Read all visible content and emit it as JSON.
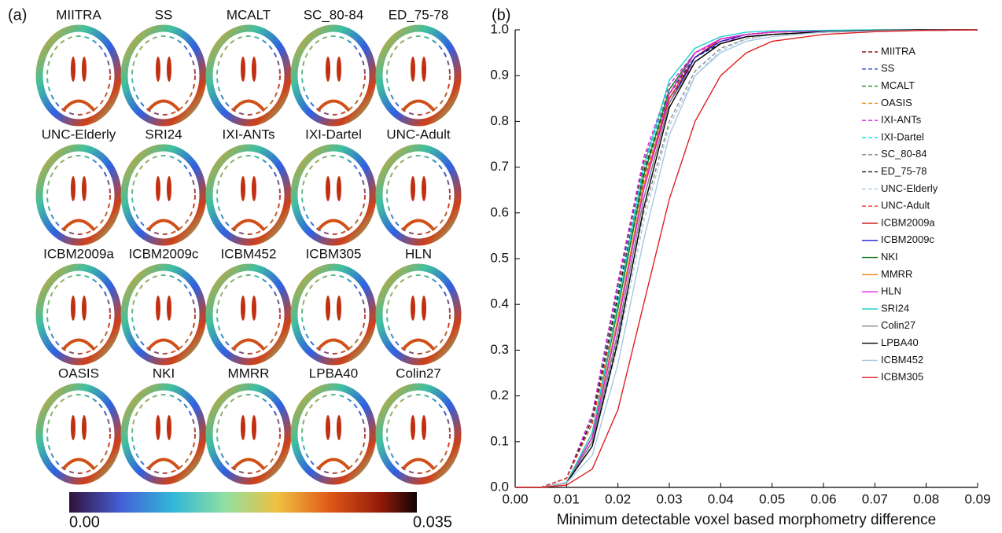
{
  "panel_a": {
    "label": "(a)",
    "images": [
      "MIITRA",
      "SS",
      "MCALT",
      "SC_80-84",
      "ED_75-78",
      "UNC-Elderly",
      "SRI24",
      "IXI-ANTs",
      "IXI-Dartel",
      "UNC-Adult",
      "ICBM2009a",
      "ICBM2009c",
      "ICBM452",
      "ICBM305",
      "HLN",
      "OASIS",
      "NKI",
      "MMRR",
      "LPBA40",
      "Colin27"
    ],
    "colorbar": {
      "ticks": [
        {
          "value": 0,
          "label": "0.00"
        },
        0.035
      ]
    }
  },
  "chart_data": {
    "type": "line",
    "panel_label": "(b)",
    "xlabel": "Minimum detectable voxel based morphometry difference",
    "x": [
      0,
      0.005,
      0.01,
      0.015,
      0.02,
      0.025,
      0.03,
      0.035,
      0.04,
      0.045,
      0.05,
      0.06,
      0.07,
      0.08,
      0.09
    ],
    "xlim": [
      0,
      0.09
    ],
    "xticks": [
      {
        "value": 0,
        "label": "0.00"
      },
      0.01,
      0.02,
      0.03,
      0.04,
      0.05,
      0.06,
      0.07,
      0.08,
      0.09
    ],
    "ylim": [
      0,
      1
    ],
    "yticks": [
      {
        "value": 0,
        "label": "0.0"
      },
      0.1,
      0.2,
      0.3,
      0.4,
      0.5,
      0.6,
      0.7,
      0.8,
      0.9,
      {
        "value": 1,
        "label": "1.0"
      }
    ],
    "legend_position": "upper right",
    "series": [
      {
        "name": "MIITRA",
        "color": "#8b1a1a",
        "line_style": "dashed",
        "values": [
          0,
          0,
          0.02,
          0.16,
          0.44,
          0.71,
          0.87,
          0.94,
          0.97,
          0.985,
          0.99,
          0.995,
          0.998,
          0.999,
          1
        ]
      },
      {
        "name": "SS",
        "color": "#1f3fd0",
        "line_style": "dashed",
        "values": [
          0,
          0,
          0.02,
          0.15,
          0.43,
          0.7,
          0.87,
          0.94,
          0.97,
          0.985,
          0.99,
          0.995,
          0.998,
          0.999,
          1
        ]
      },
      {
        "name": "MCALT",
        "color": "#1a8a1a",
        "line_style": "dashed",
        "values": [
          0,
          0,
          0.02,
          0.14,
          0.41,
          0.68,
          0.86,
          0.94,
          0.97,
          0.985,
          0.99,
          0.995,
          0.998,
          0.999,
          1
        ]
      },
      {
        "name": "OASIS",
        "color": "#f08c1a",
        "line_style": "dashed",
        "values": [
          0,
          0,
          0.02,
          0.14,
          0.42,
          0.69,
          0.86,
          0.94,
          0.97,
          0.985,
          0.99,
          0.995,
          0.998,
          0.999,
          1
        ]
      },
      {
        "name": "IXI-ANTs",
        "color": "#e020e0",
        "line_style": "dashed",
        "values": [
          0,
          0,
          0.02,
          0.16,
          0.45,
          0.72,
          0.88,
          0.95,
          0.975,
          0.985,
          0.99,
          0.995,
          0.998,
          0.999,
          1
        ]
      },
      {
        "name": "IXI-Dartel",
        "color": "#20d8e0",
        "line_style": "dashed",
        "values": [
          0,
          0,
          0.02,
          0.15,
          0.43,
          0.7,
          0.87,
          0.94,
          0.97,
          0.985,
          0.99,
          0.995,
          0.998,
          0.999,
          1
        ]
      },
      {
        "name": "SC_80-84",
        "color": "#888888",
        "line_style": "dashed",
        "values": [
          0,
          0,
          0.01,
          0.1,
          0.33,
          0.6,
          0.8,
          0.91,
          0.96,
          0.98,
          0.99,
          0.995,
          0.998,
          0.999,
          1
        ]
      },
      {
        "name": "ED_75-78",
        "color": "#222222",
        "line_style": "dashed",
        "values": [
          0,
          0,
          0.02,
          0.15,
          0.42,
          0.69,
          0.86,
          0.94,
          0.97,
          0.985,
          0.99,
          0.995,
          0.998,
          0.999,
          1
        ]
      },
      {
        "name": "UNC-Elderly",
        "color": "#a8c8e0",
        "line_style": "dashed",
        "values": [
          0,
          0,
          0.01,
          0.09,
          0.31,
          0.58,
          0.79,
          0.9,
          0.955,
          0.98,
          0.99,
          0.995,
          0.998,
          0.999,
          1
        ]
      },
      {
        "name": "UNC-Adult",
        "color": "#f03020",
        "line_style": "dashed",
        "values": [
          0,
          0,
          0.02,
          0.14,
          0.4,
          0.67,
          0.85,
          0.93,
          0.97,
          0.985,
          0.99,
          0.995,
          0.998,
          0.999,
          1
        ]
      },
      {
        "name": "ICBM2009a",
        "color": "#d42020",
        "line_style": "solid",
        "values": [
          0,
          0,
          0.01,
          0.11,
          0.36,
          0.65,
          0.85,
          0.94,
          0.98,
          0.99,
          0.995,
          0.998,
          0.999,
          1,
          1
        ]
      },
      {
        "name": "ICBM2009c",
        "color": "#1a1acc",
        "line_style": "solid",
        "values": [
          0,
          0,
          0.01,
          0.1,
          0.34,
          0.63,
          0.84,
          0.94,
          0.975,
          0.99,
          0.995,
          0.998,
          0.999,
          1,
          1
        ]
      },
      {
        "name": "NKI",
        "color": "#1a7a1a",
        "line_style": "solid",
        "values": [
          0,
          0,
          0.01,
          0.12,
          0.39,
          0.68,
          0.87,
          0.95,
          0.98,
          0.99,
          0.995,
          0.998,
          0.999,
          1,
          1
        ]
      },
      {
        "name": "MMRR",
        "color": "#f0801a",
        "line_style": "solid",
        "values": [
          0,
          0,
          0.01,
          0.11,
          0.37,
          0.66,
          0.86,
          0.95,
          0.98,
          0.99,
          0.995,
          0.998,
          0.999,
          1,
          1
        ]
      },
      {
        "name": "HLN",
        "color": "#e020e0",
        "line_style": "solid",
        "values": [
          0,
          0,
          0.01,
          0.11,
          0.36,
          0.65,
          0.86,
          0.95,
          0.98,
          0.99,
          0.995,
          0.998,
          0.999,
          1,
          1
        ]
      },
      {
        "name": "SRI24",
        "color": "#20d0d0",
        "line_style": "solid",
        "values": [
          0,
          0,
          0.01,
          0.12,
          0.4,
          0.7,
          0.89,
          0.96,
          0.985,
          0.995,
          0.998,
          0.999,
          1,
          1,
          1
        ]
      },
      {
        "name": "Colin27",
        "color": "#888888",
        "line_style": "solid",
        "values": [
          0,
          0,
          0.01,
          0.1,
          0.34,
          0.63,
          0.84,
          0.93,
          0.97,
          0.985,
          0.99,
          0.996,
          0.999,
          1,
          1
        ]
      },
      {
        "name": "LPBA40",
        "color": "#000000",
        "line_style": "solid",
        "values": [
          0,
          0,
          0.01,
          0.09,
          0.32,
          0.61,
          0.83,
          0.93,
          0.97,
          0.985,
          0.99,
          0.996,
          0.999,
          1,
          1
        ]
      },
      {
        "name": "ICBM452",
        "color": "#a8c8e0",
        "line_style": "solid",
        "values": [
          0,
          0,
          0.01,
          0.07,
          0.27,
          0.54,
          0.77,
          0.9,
          0.95,
          0.975,
          0.985,
          0.995,
          0.998,
          0.999,
          1
        ]
      },
      {
        "name": "ICBM305",
        "color": "#e02020",
        "line_style": "solid",
        "values": [
          0,
          0,
          0.005,
          0.04,
          0.17,
          0.4,
          0.63,
          0.8,
          0.9,
          0.95,
          0.975,
          0.99,
          0.996,
          0.999,
          1
        ]
      }
    ]
  }
}
